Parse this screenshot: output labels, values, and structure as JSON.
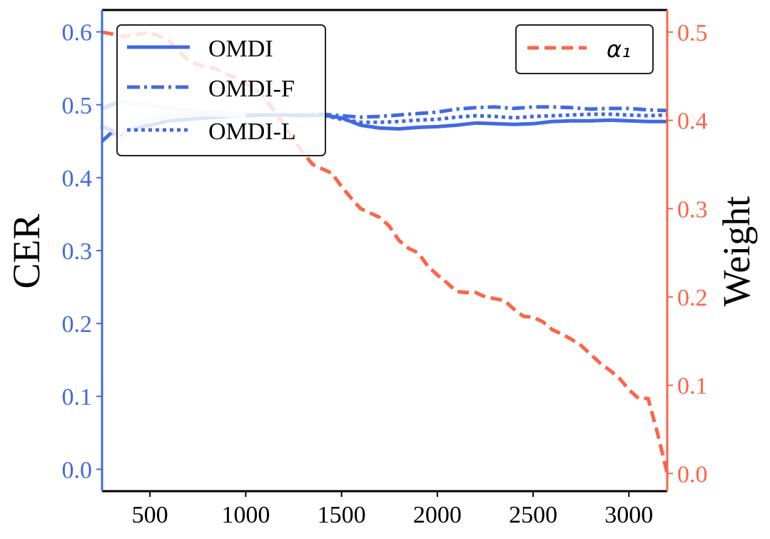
{
  "chart_data": {
    "type": "line",
    "title": "",
    "xlabel": "",
    "ylabel_left": "CER",
    "ylabel_right": "Weight",
    "xlim": [
      250,
      3200
    ],
    "ylim_left": [
      -0.03,
      0.63
    ],
    "ylim_right": [
      -0.02,
      0.525
    ],
    "x_ticks": [
      500,
      1000,
      1500,
      2000,
      2500,
      3000
    ],
    "x_tick_labels": [
      "500",
      "1000",
      "1500",
      "2000",
      "2500",
      "3000"
    ],
    "y_left_ticks": [
      0.0,
      0.1,
      0.2,
      0.3,
      0.4,
      0.5,
      0.6
    ],
    "y_left_tick_labels": [
      "0.0",
      "0.1",
      "0.2",
      "0.3",
      "0.4",
      "0.5",
      "0.6"
    ],
    "y_right_ticks": [
      0.0,
      0.1,
      0.2,
      0.3,
      0.4,
      0.5
    ],
    "y_right_tick_labels": [
      "0.0",
      "0.1",
      "0.2",
      "0.3",
      "0.4",
      "0.5"
    ],
    "colors": {
      "cer": "#4169e1",
      "cer_faded": "#dce3f7",
      "weight": "#ff6347",
      "axes": "#000000"
    },
    "series": [
      {
        "name": "OMDI",
        "axis": "left",
        "style": "solid",
        "faded_until": 0,
        "x": [
          250,
          300,
          350,
          400,
          500,
          600,
          700,
          800,
          900,
          1000,
          1100,
          1200,
          1300,
          1400,
          1500,
          1600,
          1700,
          1800,
          1900,
          2000,
          2100,
          2200,
          2300,
          2400,
          2500,
          2600,
          2700,
          2800,
          2900,
          3000,
          3100,
          3200
        ],
        "values": [
          0.45,
          0.462,
          0.456,
          0.468,
          0.472,
          0.478,
          0.48,
          0.482,
          0.484,
          0.485,
          0.486,
          0.486,
          0.485,
          0.486,
          0.482,
          0.472,
          0.468,
          0.467,
          0.469,
          0.47,
          0.472,
          0.475,
          0.474,
          0.473,
          0.474,
          0.477,
          0.478,
          0.478,
          0.479,
          0.478,
          0.477,
          0.477
        ]
      },
      {
        "name": "OMDI-F",
        "axis": "left",
        "style": "dashdot",
        "faded_until": 1000,
        "x": [
          250,
          300,
          350,
          400,
          500,
          600,
          700,
          800,
          900,
          1000,
          1100,
          1200,
          1300,
          1400,
          1500,
          1600,
          1700,
          1800,
          1900,
          2000,
          2100,
          2200,
          2300,
          2400,
          2500,
          2600,
          2700,
          2800,
          2900,
          3000,
          3100,
          3200
        ],
        "values": [
          0.495,
          0.5,
          0.505,
          0.502,
          0.5,
          0.495,
          0.492,
          0.49,
          0.488,
          0.486,
          0.486,
          0.486,
          0.486,
          0.487,
          0.485,
          0.483,
          0.484,
          0.486,
          0.488,
          0.49,
          0.494,
          0.496,
          0.497,
          0.495,
          0.497,
          0.497,
          0.496,
          0.494,
          0.495,
          0.495,
          0.493,
          0.492
        ]
      },
      {
        "name": "OMDI-L",
        "axis": "left",
        "style": "dotted",
        "faded_until": 1000,
        "x": [
          250,
          300,
          350,
          400,
          500,
          600,
          700,
          800,
          900,
          1000,
          1100,
          1200,
          1300,
          1400,
          1500,
          1600,
          1700,
          1800,
          1900,
          2000,
          2100,
          2200,
          2300,
          2400,
          2500,
          2600,
          2700,
          2800,
          2900,
          3000,
          3100,
          3200
        ],
        "values": [
          0.47,
          0.465,
          0.452,
          0.47,
          0.48,
          0.485,
          0.487,
          0.487,
          0.486,
          0.485,
          0.486,
          0.486,
          0.485,
          0.486,
          0.48,
          0.476,
          0.476,
          0.477,
          0.479,
          0.48,
          0.483,
          0.485,
          0.484,
          0.482,
          0.484,
          0.485,
          0.486,
          0.487,
          0.487,
          0.486,
          0.485,
          0.486
        ]
      },
      {
        "name": "α₁",
        "axis": "right",
        "style": "dashed",
        "faded_until": 0,
        "x": [
          250,
          300,
          350,
          400,
          450,
          500,
          550,
          600,
          650,
          700,
          750,
          800,
          850,
          900,
          950,
          1000,
          1050,
          1100,
          1150,
          1200,
          1250,
          1300,
          1350,
          1400,
          1450,
          1500,
          1550,
          1600,
          1650,
          1700,
          1750,
          1800,
          1850,
          1900,
          1950,
          2000,
          2050,
          2100,
          2150,
          2200,
          2250,
          2300,
          2350,
          2400,
          2450,
          2500,
          2550,
          2600,
          2650,
          2700,
          2750,
          2800,
          2850,
          2900,
          2950,
          3000,
          3050,
          3100,
          3150,
          3200
        ],
        "values": [
          0.5,
          0.498,
          0.495,
          0.496,
          0.498,
          0.5,
          0.495,
          0.49,
          0.478,
          0.468,
          0.463,
          0.461,
          0.458,
          0.452,
          0.448,
          0.442,
          0.435,
          0.425,
          0.41,
          0.395,
          0.378,
          0.363,
          0.35,
          0.345,
          0.34,
          0.325,
          0.312,
          0.3,
          0.295,
          0.29,
          0.28,
          0.264,
          0.255,
          0.25,
          0.235,
          0.225,
          0.216,
          0.206,
          0.205,
          0.205,
          0.2,
          0.198,
          0.196,
          0.186,
          0.178,
          0.177,
          0.172,
          0.163,
          0.158,
          0.152,
          0.145,
          0.135,
          0.125,
          0.117,
          0.108,
          0.095,
          0.085,
          0.085,
          0.045,
          0.0
        ]
      }
    ],
    "legends": [
      {
        "position": "upper-left",
        "entries": [
          "OMDI",
          "OMDI-F",
          "OMDI-L"
        ]
      },
      {
        "position": "upper-right",
        "entries": [
          "α₁"
        ]
      }
    ]
  }
}
